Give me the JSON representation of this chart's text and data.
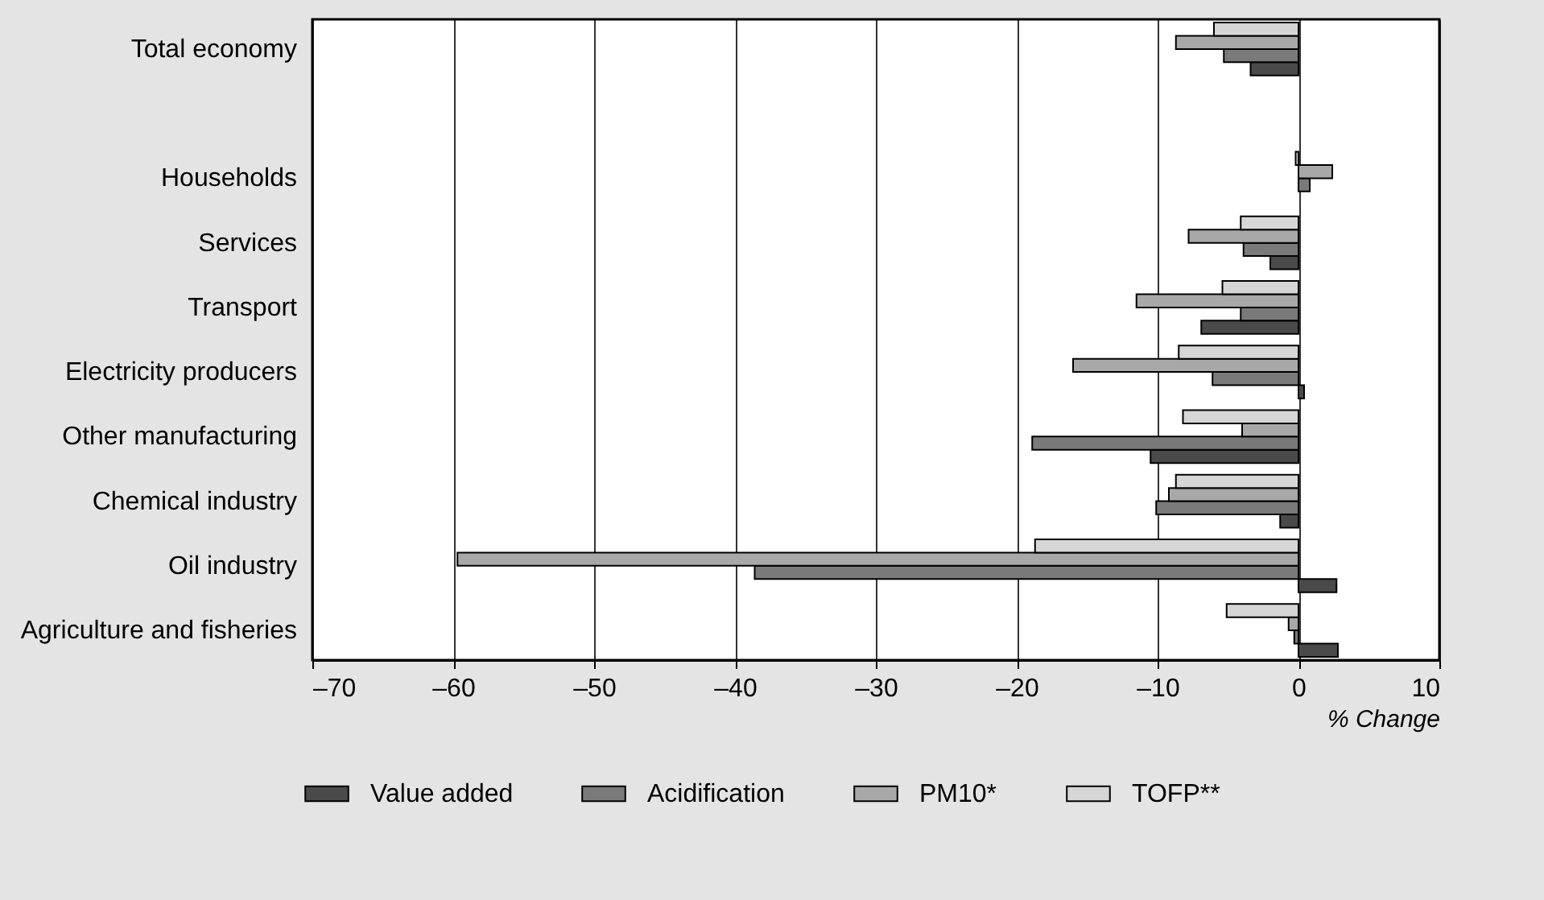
{
  "chart_data": {
    "type": "bar",
    "orientation": "horizontal",
    "xlabel": "% Change",
    "categories": [
      "Total economy",
      null,
      "Households",
      "Services",
      "Transport",
      "Electricity producers",
      "Other manufacturing",
      "Chemical industry",
      "Oil industry",
      "Agriculture and fisheries"
    ],
    "series": [
      {
        "name": "Value added",
        "color": "#4a4a4a",
        "values": [
          -3.4,
          null,
          null,
          -2.0,
          -6.9,
          0.4,
          -10.5,
          -1.3,
          2.7,
          2.8
        ]
      },
      {
        "name": "Acidification",
        "color": "#7a7a7a",
        "values": [
          -5.3,
          null,
          0.8,
          -3.9,
          -4.1,
          -6.1,
          -18.9,
          -10.1,
          -38.6,
          -0.3
        ]
      },
      {
        "name": "PM10*",
        "color": "#a8a8a8",
        "values": [
          -8.7,
          null,
          2.4,
          -7.8,
          -11.5,
          -16.0,
          -4.0,
          -9.2,
          -59.7,
          -0.7
        ]
      },
      {
        "name": "TOFP**",
        "color": "#d6d6d6",
        "values": [
          -6.0,
          null,
          -0.2,
          -4.1,
          -5.4,
          -8.5,
          -8.2,
          -8.7,
          -18.7,
          -5.1
        ]
      }
    ],
    "xlim": [
      -70,
      10
    ],
    "xticks": [
      {
        "value": -70,
        "label": "–70"
      },
      {
        "value": -60,
        "label": "–60"
      },
      {
        "value": -50,
        "label": "–50"
      },
      {
        "value": -40,
        "label": "–40"
      },
      {
        "value": -30,
        "label": "–30"
      },
      {
        "value": -20,
        "label": "–20"
      },
      {
        "value": -10,
        "label": "–10"
      },
      0,
      10
    ],
    "grid": "x",
    "legend": "bottom"
  }
}
